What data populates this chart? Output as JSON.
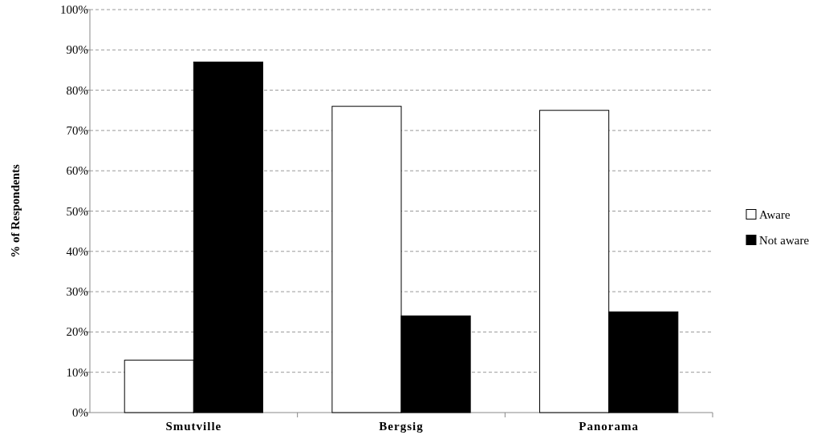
{
  "chart_data": {
    "type": "bar",
    "ylabel": "% of Respondents",
    "categories": [
      "Smutville",
      "Bergsig",
      "Panorama"
    ],
    "series": [
      {
        "name": "Aware",
        "color": "#ffffff",
        "values": [
          13,
          76,
          75
        ]
      },
      {
        "name": "Not aware",
        "color": "#000000",
        "values": [
          87,
          24,
          25
        ]
      }
    ],
    "ylim": [
      0,
      100
    ],
    "yticks": [
      {
        "value": 0,
        "label": "0%"
      },
      {
        "value": 10,
        "label": "10%"
      },
      {
        "value": 20,
        "label": "20%"
      },
      {
        "value": 30,
        "label": "30%"
      },
      {
        "value": 40,
        "label": "40%"
      },
      {
        "value": 50,
        "label": "50%"
      },
      {
        "value": 60,
        "label": "60%"
      },
      {
        "value": 70,
        "label": "70%"
      },
      {
        "value": 80,
        "label": "80%"
      },
      {
        "value": 90,
        "label": "90%"
      },
      {
        "value": 100,
        "label": "100%"
      }
    ],
    "grid": "y",
    "legend": "right"
  }
}
